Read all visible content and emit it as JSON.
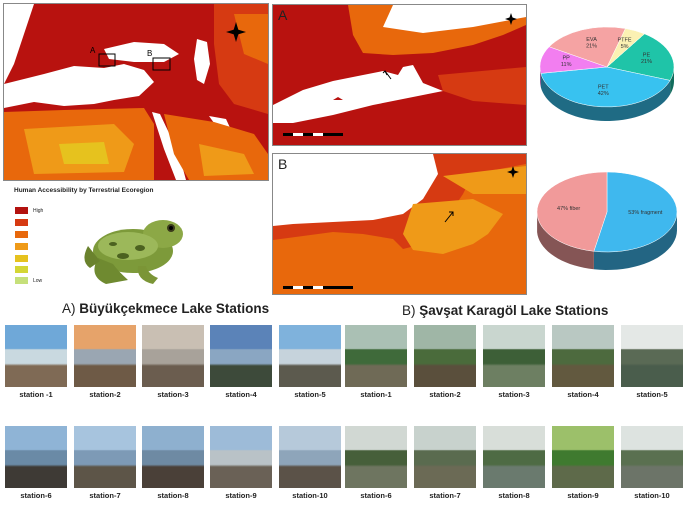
{
  "legend": {
    "title": "Human Accessibility by Terrestrial Ecoregion",
    "high_label": "High",
    "low_label": "Low",
    "colors": [
      "#b3120f",
      "#d63a12",
      "#e8680c",
      "#ef9a18",
      "#e6c21e",
      "#d4d634",
      "#c6e07a"
    ]
  },
  "overview_map": {
    "inset_a_label": "A",
    "inset_b_label": "B"
  },
  "map_a": {
    "letter": "A"
  },
  "map_b": {
    "letter": "B"
  },
  "chart_data": [
    {
      "type": "pie",
      "title": "",
      "labels": [
        "PE",
        "PET",
        "PP",
        "EVA",
        "PTFE"
      ],
      "values": [
        21,
        42,
        11,
        21,
        5
      ],
      "label_texts": [
        "PE\n21%",
        "PET\n42%",
        "PP\n11%",
        "EVA\n21%",
        "PTFE\n5%"
      ],
      "colors": [
        "#1fc4a8",
        "#38c2f0",
        "#f27ef0",
        "#f5a3a3",
        "#fbf1b3"
      ]
    },
    {
      "type": "pie",
      "title": "",
      "labels": [
        "fragment",
        "fiber"
      ],
      "values": [
        53,
        47
      ],
      "label_texts": [
        "53% fragment",
        "47% fiber"
      ],
      "colors": [
        "#3fb8ee",
        "#f19a9a"
      ]
    }
  ],
  "section_a": {
    "prefix": "A)",
    "title": "Büyükçekmece Lake Stations",
    "stations": [
      "station -1",
      "station-2",
      "station-3",
      "station-4",
      "station-5",
      "station-6",
      "station-7",
      "station-8",
      "station-9",
      "station-10"
    ]
  },
  "section_b": {
    "prefix": "B)",
    "title": "Şavşat Karagöl Lake Stations",
    "stations": [
      "station-1",
      "station-2",
      "station-3",
      "station-4",
      "station-5",
      "station-6",
      "station-7",
      "station-8",
      "station-9",
      "station-10"
    ]
  }
}
